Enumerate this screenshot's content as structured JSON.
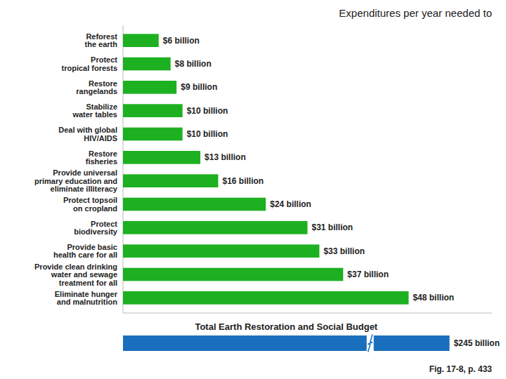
{
  "chart_data": {
    "type": "bar",
    "orientation": "horizontal",
    "title": "Expenditures per year needed to",
    "categories": [
      "Reforest\nthe earth",
      "Protect\ntropical forests",
      "Restore\nrangelands",
      "Stabilize\nwater tables",
      "Deal with global\nHIV/AIDS",
      "Restore\nfisheries",
      "Provide universal\nprimary education and\neliminate illiteracy",
      "Protect topsoil\non cropland",
      "Protect\nbiodiversity",
      "Provide basic\nhealth care for all",
      "Provide clean drinking\nwater and sewage\ntreatment for all",
      "Eliminate hunger\nand malnutrition"
    ],
    "values": [
      6,
      8,
      9,
      10,
      10,
      13,
      16,
      24,
      31,
      33,
      37,
      48
    ],
    "value_labels": [
      "$6 billion",
      "$8 billion",
      "$9 billion",
      "$10 billion",
      "$10 billion",
      "$13 billion",
      "$16 billion",
      "$24 billion",
      "$31 billion",
      "$33 billion",
      "$37 billion",
      "$48 billion"
    ],
    "data_labels": true,
    "color": "#1db021",
    "xlim": [
      0,
      62
    ],
    "xticks": [],
    "tick_labels": "y",
    "grid": false,
    "total": {
      "label": "Total Earth Restoration and Social Budget",
      "value": 245,
      "value_label": "$245 billion",
      "color": "#1a6fbd"
    },
    "footnote": "Fig. 17-8, p. 433"
  }
}
